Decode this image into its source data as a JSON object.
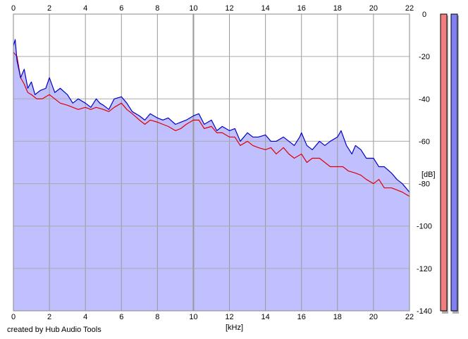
{
  "chart_data": {
    "type": "area",
    "xlabel": "[kHz]",
    "ylabel": "[dB]",
    "xlim": [
      0,
      22
    ],
    "ylim": [
      -140,
      0
    ],
    "x_ticks": [
      "0",
      "2",
      "4",
      "6",
      "8",
      "10",
      "12",
      "14",
      "16",
      "18",
      "20",
      "22"
    ],
    "y_ticks": [
      "0",
      "-20",
      "-40",
      "-60",
      "-80",
      "-100",
      "-120",
      "-140"
    ],
    "grid": true,
    "series": [
      {
        "color": "#0000c8",
        "fill": "#c0c0ff",
        "x": [
          0,
          0.1,
          0.2,
          0.4,
          0.6,
          0.8,
          1,
          1.2,
          1.5,
          1.8,
          2,
          2.3,
          2.6,
          3,
          3.3,
          3.6,
          4,
          4.3,
          4.6,
          4.8,
          5,
          5.3,
          5.6,
          6,
          6.3,
          6.6,
          7,
          7.3,
          7.6,
          8,
          8.3,
          8.6,
          9,
          9.3,
          9.6,
          10,
          10.3,
          10.6,
          11,
          11.3,
          11.6,
          12,
          12.3,
          12.6,
          13,
          13.3,
          13.6,
          14,
          14.3,
          14.6,
          15,
          15.3,
          15.6,
          15.9,
          16,
          16.3,
          16.6,
          17,
          17.3,
          17.6,
          18,
          18.2,
          18.5,
          18.8,
          19,
          19.3,
          19.6,
          20,
          20.3,
          20.6,
          21,
          21.3,
          21.6,
          22
        ],
        "y": [
          -15,
          -12,
          -22,
          -30,
          -26,
          -35,
          -32,
          -38,
          -36,
          -35,
          -30,
          -37,
          -35,
          -38,
          -42,
          -40,
          -42,
          -44,
          -40,
          -42,
          -43,
          -45,
          -40,
          -39,
          -42,
          -46,
          -48,
          -50,
          -47,
          -49,
          -50,
          -49,
          -52,
          -51,
          -50,
          -48,
          -47,
          -52,
          -50,
          -55,
          -53,
          -55,
          -54,
          -60,
          -56,
          -58,
          -58,
          -57,
          -60,
          -60,
          -58,
          -60,
          -62,
          -58,
          -56,
          -62,
          -64,
          -60,
          -62,
          -60,
          -58,
          -55,
          -62,
          -66,
          -62,
          -64,
          -68,
          -68,
          -72,
          -72,
          -75,
          -78,
          -80,
          -84
        ]
      },
      {
        "color": "#e00000",
        "x": [
          0,
          0.2,
          0.4,
          0.6,
          0.8,
          1,
          1.3,
          1.6,
          2,
          2.3,
          2.6,
          3,
          3.3,
          3.6,
          4,
          4.3,
          4.6,
          5,
          5.3,
          5.6,
          6,
          6.3,
          6.6,
          7,
          7.3,
          7.6,
          8,
          8.3,
          8.6,
          9,
          9.3,
          9.6,
          10,
          10.3,
          10.6,
          11,
          11.3,
          11.6,
          12,
          12.3,
          12.6,
          13,
          13.3,
          13.6,
          14,
          14.3,
          14.6,
          15,
          15.3,
          15.6,
          16,
          16.3,
          16.6,
          17,
          17.3,
          17.6,
          18,
          18.3,
          18.6,
          19,
          19.3,
          19.6,
          20,
          20.3,
          20.6,
          21,
          21.3,
          21.6,
          22
        ],
        "y": [
          -18,
          -20,
          -30,
          -33,
          -37,
          -38,
          -40,
          -40,
          -38,
          -40,
          -42,
          -43,
          -44,
          -45,
          -44,
          -45,
          -44,
          -45,
          -46,
          -44,
          -42,
          -45,
          -47,
          -50,
          -52,
          -50,
          -51,
          -52,
          -53,
          -55,
          -54,
          -52,
          -50,
          -50,
          -54,
          -53,
          -56,
          -56,
          -58,
          -58,
          -62,
          -60,
          -62,
          -63,
          -64,
          -63,
          -66,
          -63,
          -66,
          -68,
          -66,
          -70,
          -68,
          -68,
          -70,
          -72,
          -72,
          -72,
          -74,
          -75,
          -76,
          -78,
          -80,
          -78,
          -82,
          -82,
          -83,
          -84,
          -86
        ]
      }
    ],
    "level_meters": [
      {
        "color": "#f08080",
        "level_db": 0
      },
      {
        "color": "#8080f0",
        "level_db": 0
      }
    ]
  },
  "footer": {
    "credit": "created by Hub Audio Tools"
  }
}
